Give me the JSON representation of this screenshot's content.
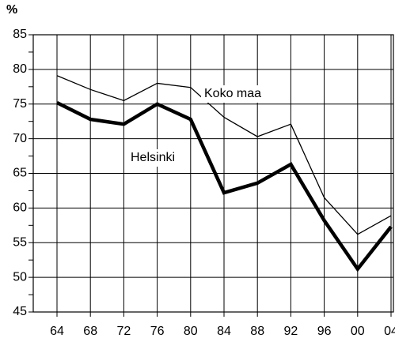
{
  "chart_data": {
    "type": "line",
    "y_label": "%",
    "categories": [
      "64",
      "68",
      "72",
      "76",
      "80",
      "84",
      "88",
      "92",
      "96",
      "00",
      "04"
    ],
    "series": [
      {
        "name": "Koko maa",
        "color": "#000000",
        "width": 1.3,
        "values": [
          79.1,
          77.1,
          75.5,
          78.0,
          77.4,
          73.1,
          70.3,
          72.1,
          61.5,
          56.2,
          58.9
        ]
      },
      {
        "name": "Helsinki",
        "color": "#000000",
        "width": 4.5,
        "values": [
          75.2,
          72.8,
          72.1,
          75.0,
          72.8,
          62.2,
          63.6,
          66.3,
          58.2,
          51.2,
          57.3
        ]
      }
    ],
    "ylim": [
      45,
      85
    ],
    "yticks": [
      45,
      50,
      55,
      60,
      65,
      70,
      75,
      80,
      85
    ],
    "minor_yticks": [
      47.5,
      52.5,
      57.5,
      62.5,
      67.5,
      72.5,
      77.5,
      82.5
    ],
    "grid": true
  }
}
